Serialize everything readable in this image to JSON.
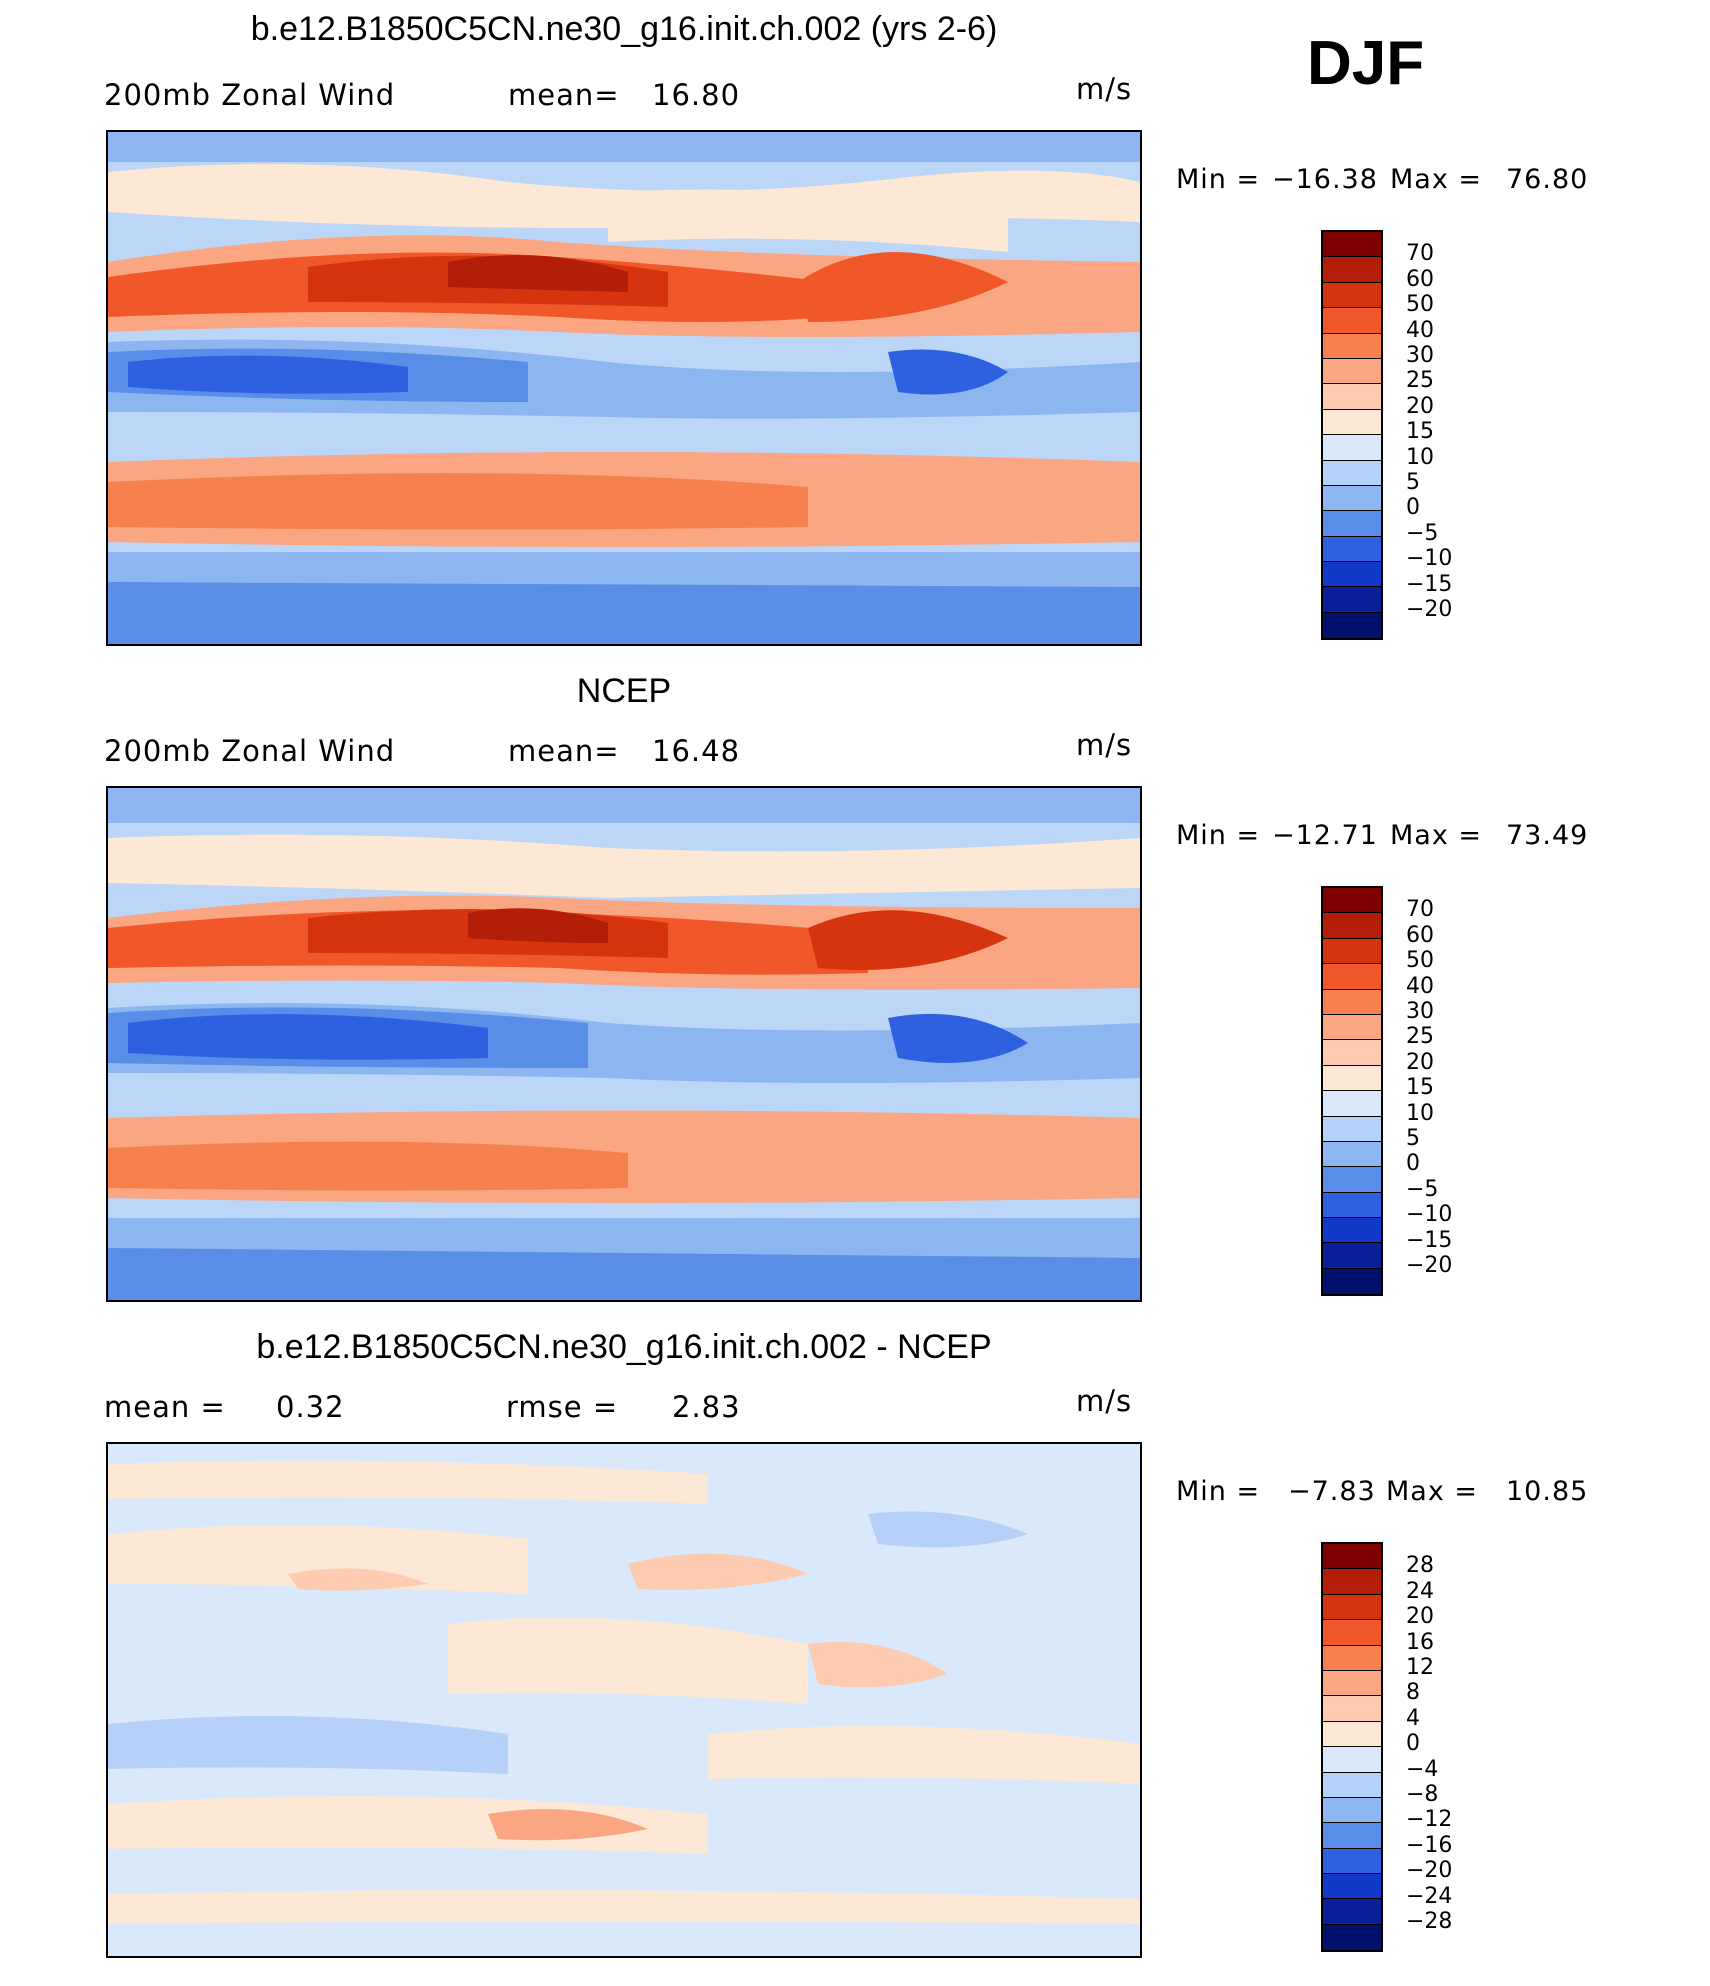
{
  "season": "DJF",
  "panels": [
    {
      "title": "b.e12.B1850C5CN.ne30_g16.init.ch.002 (yrs 2-6)",
      "field_label": "200mb Zonal Wind",
      "stat_label": "mean=",
      "stat_value": "16.80",
      "stat2_label": "",
      "stat2_value": "",
      "units": "m/s",
      "min_label": "Min =",
      "min_value": "−16.38",
      "max_label": "Max =",
      "max_value": "76.80",
      "colorbar_labels": [
        "70",
        "60",
        "50",
        "40",
        "30",
        "25",
        "20",
        "15",
        "10",
        "5",
        "0",
        "−5",
        "−10",
        "−15",
        "−20"
      ],
      "colorbar_colors": [
        "#7f0000",
        "#b31e08",
        "#d6340f",
        "#f0582a",
        "#f7814e",
        "#fba682",
        "#fdcbb0",
        "#fde8d6",
        "#d9e8fa",
        "#b5d1f7",
        "#8db6f1",
        "#5a8de8",
        "#2f60e0",
        "#1238c8",
        "#0a1f9a",
        "#00106b"
      ]
    },
    {
      "title": "NCEP",
      "field_label": "200mb Zonal Wind",
      "stat_label": "mean=",
      "stat_value": "16.48",
      "stat2_label": "",
      "stat2_value": "",
      "units": "m/s",
      "min_label": "Min =",
      "min_value": "−12.71",
      "max_label": "Max =",
      "max_value": "73.49",
      "colorbar_labels": [
        "70",
        "60",
        "50",
        "40",
        "30",
        "25",
        "20",
        "15",
        "10",
        "5",
        "0",
        "−5",
        "−10",
        "−15",
        "−20"
      ],
      "colorbar_colors": [
        "#7f0000",
        "#b31e08",
        "#d6340f",
        "#f0582a",
        "#f7814e",
        "#fba682",
        "#fdcbb0",
        "#fde8d6",
        "#d9e8fa",
        "#b5d1f7",
        "#8db6f1",
        "#5a8de8",
        "#2f60e0",
        "#1238c8",
        "#0a1f9a",
        "#00106b"
      ]
    },
    {
      "title": "b.e12.B1850C5CN.ne30_g16.init.ch.002 - NCEP",
      "field_label": "mean =",
      "stat_label": "",
      "stat_value": "0.32",
      "stat2_label": "rmse =",
      "stat2_value": "2.83",
      "units": "m/s",
      "min_label": "Min =",
      "min_value": "−7.83",
      "max_label": "Max =",
      "max_value": "10.85",
      "colorbar_labels": [
        "28",
        "24",
        "20",
        "16",
        "12",
        "8",
        "4",
        "0",
        "−4",
        "−8",
        "−12",
        "−16",
        "−20",
        "−24",
        "−28"
      ],
      "colorbar_colors": [
        "#7f0000",
        "#b31e08",
        "#d6340f",
        "#f0582a",
        "#f7814e",
        "#fba682",
        "#fdcbb0",
        "#fde8d6",
        "#d9e8fa",
        "#b5d1f7",
        "#8db6f1",
        "#5a8de8",
        "#2f60e0",
        "#1238c8",
        "#0a1f9a",
        "#00106b"
      ]
    }
  ]
}
